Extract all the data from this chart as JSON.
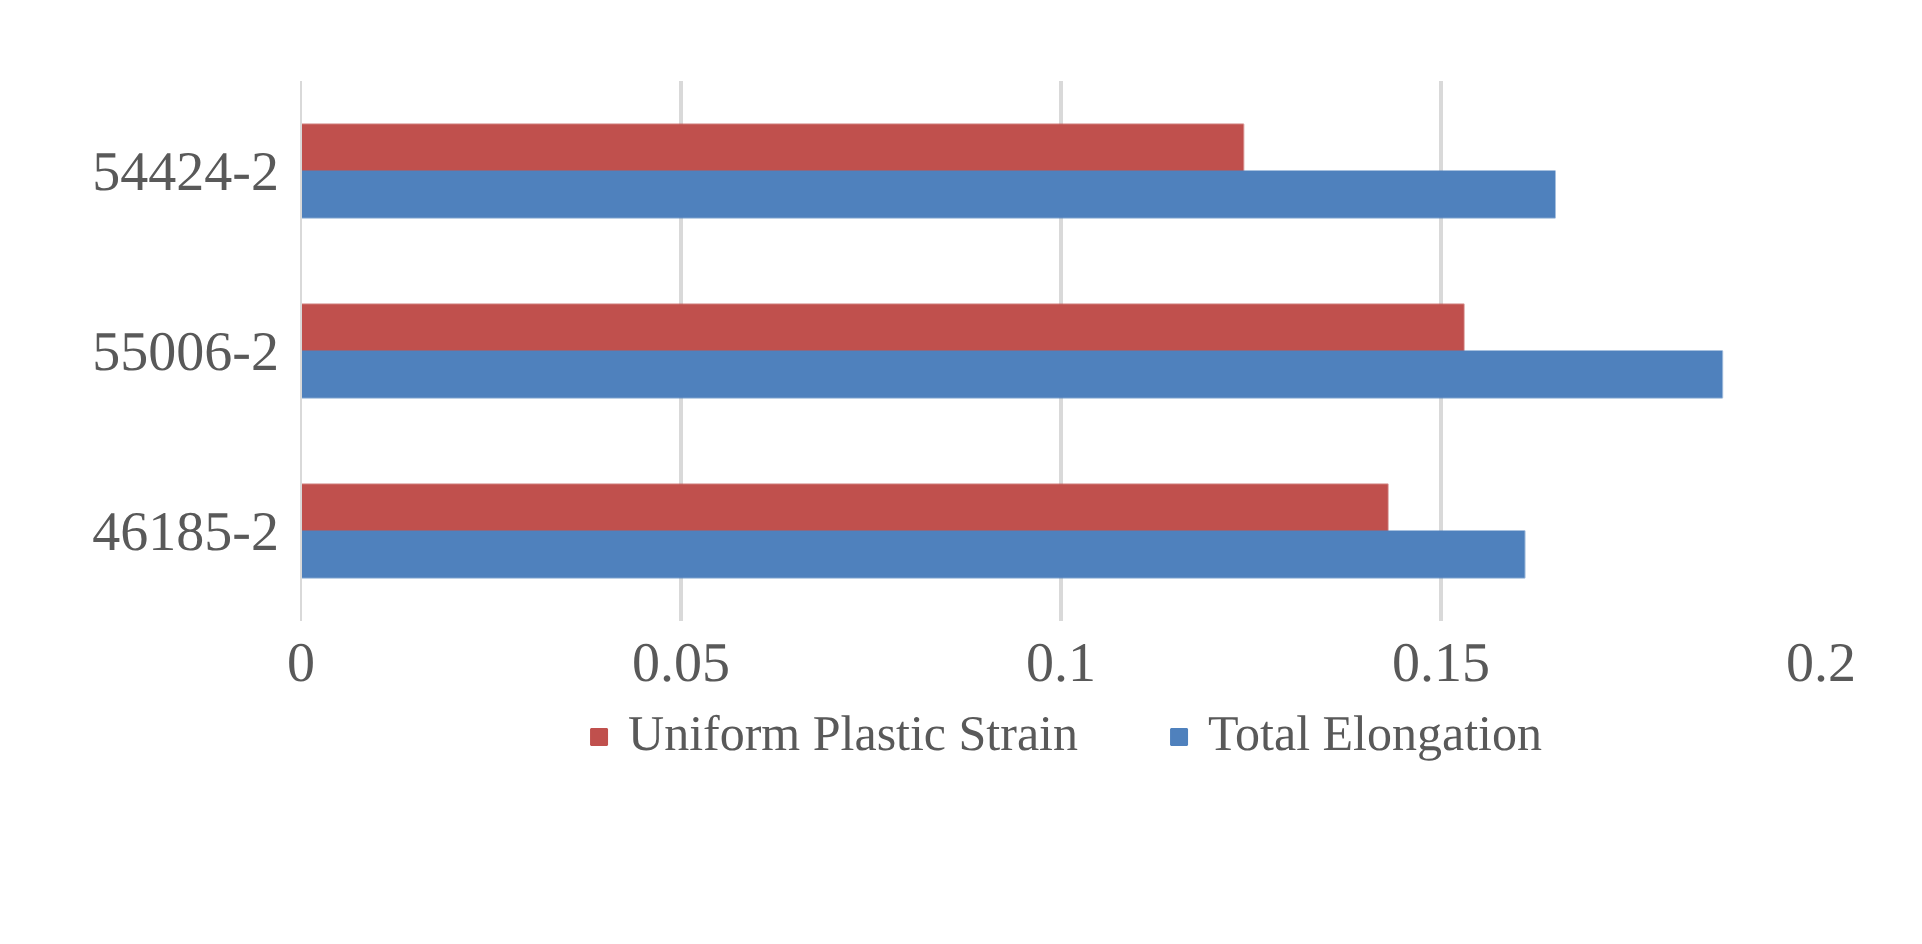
{
  "chart_data": {
    "type": "bar",
    "orientation": "horizontal",
    "categories": [
      "54424-2",
      "55006-2",
      "46185-2"
    ],
    "series": [
      {
        "name": "Uniform Plastic Strain",
        "color": "#c0504d",
        "values": [
          0.124,
          0.153,
          0.143
        ]
      },
      {
        "name": "Total Elongation",
        "color": "#4f81bd",
        "values": [
          0.165,
          0.187,
          0.161
        ]
      }
    ],
    "xlim": [
      0,
      0.2
    ],
    "xticks": [
      0,
      0.05,
      0.1,
      0.15,
      0.2
    ],
    "grid": "x",
    "legend": "bottom"
  }
}
